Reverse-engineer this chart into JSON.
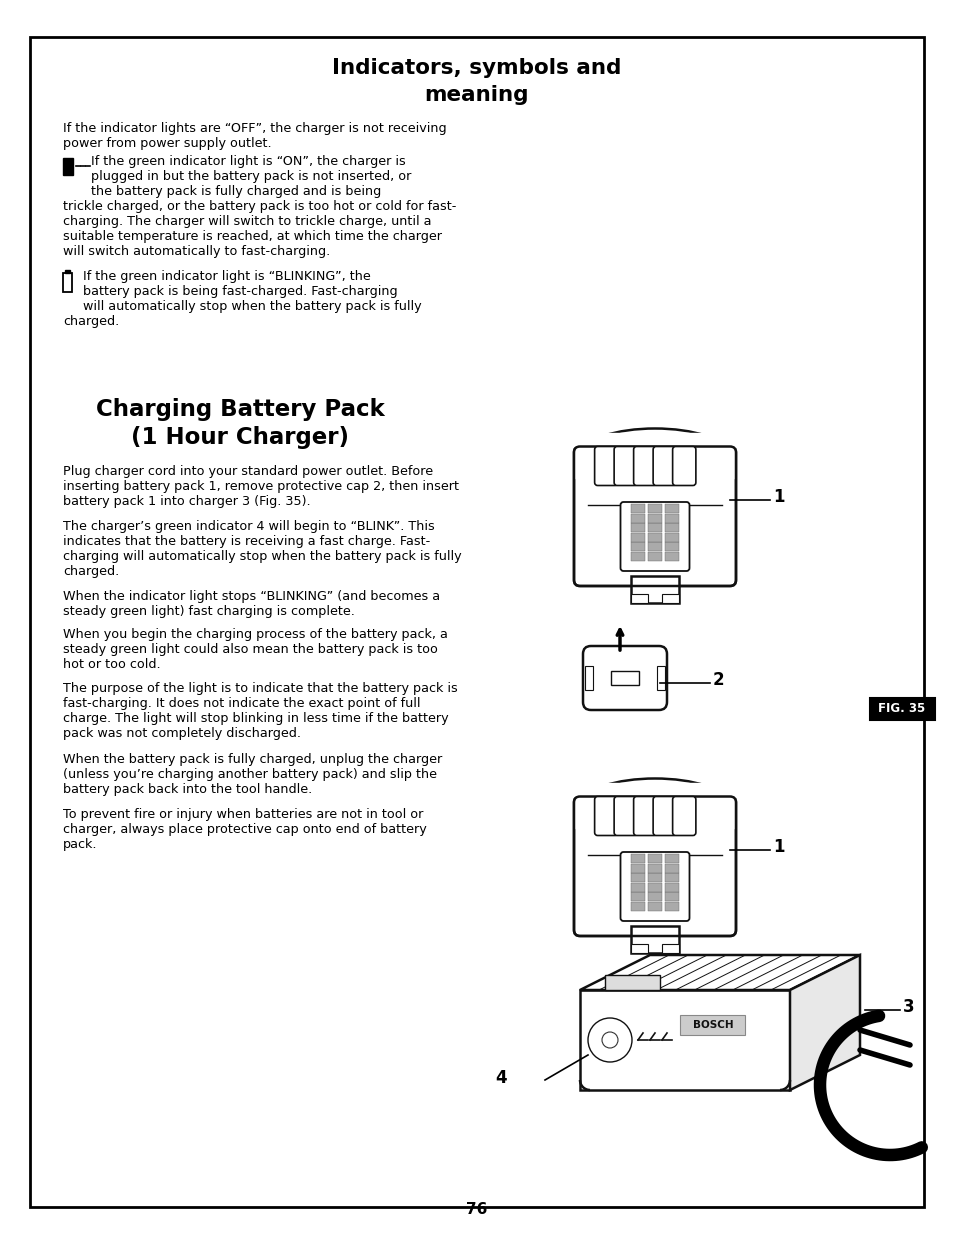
{
  "title1_line1": "Indicators, symbols and",
  "title1_line2": "meaning",
  "title2_line1": "Charging Battery Pack",
  "title2_line2": "(1 Hour Charger)",
  "page_number": "76",
  "fig_label": "FIG. 35",
  "bg_color": "#ffffff",
  "border_color": "#000000",
  "text_color": "#000000",
  "para0_line1": "If the indicator lights are “OFF”, the charger is not receiving",
  "para0_line2": "power from power supply outlet.",
  "para1_indent": "If the green indicator light is “ON”, the charger is",
  "para1_2": "plugged in but the battery pack is not inserted, or",
  "para1_3": "the battery pack is fully charged and is being",
  "para1_4": "trickle charged, or the battery pack is too hot or cold for fast-",
  "para1_5": "charging. The charger will switch to trickle charge, until a",
  "para1_6": "suitable temperature is reached, at which time the charger",
  "para1_7": "will switch automatically to fast-charging.",
  "para2_indent": "If the green indicator light is “BLINKING”, the",
  "para2_2": "battery pack is being fast-charged. Fast-charging",
  "para2_3": "will automatically stop when the battery pack is fully",
  "para2_4": "charged.",
  "para3_1": "Plug charger cord into your standard power outlet. Before",
  "para3_2": "inserting battery pack 1, remove protective cap 2, then insert",
  "para3_3": "battery pack 1 into charger 3 (Fig. 35).",
  "para4_1": "The charger’s green indicator 4 will begin to “BLINK”. This",
  "para4_2": "indicates that the battery is receiving a fast charge. Fast-",
  "para4_3": "charging will automatically stop when the battery pack is fully",
  "para4_4": "charged.",
  "para5_1": "When the indicator light stops “BLINKING” (and becomes a",
  "para5_2": "steady green light) fast charging is complete.",
  "para6_1": "When you begin the charging process of the battery pack, a",
  "para6_2": "steady green light could also mean the battery pack is too",
  "para6_3": "hot or too cold.",
  "para7_1": "The purpose of the light is to indicate that the battery pack is",
  "para7_2": "fast-charging. It does not indicate the exact point of full",
  "para7_3": "charge. The light will stop blinking in less time if the battery",
  "para7_4": "pack was not completely discharged.",
  "para8_1": "When the battery pack is fully charged, unplug the charger",
  "para8_2": "(unless you’re charging another battery pack) and slip the",
  "para8_3": "battery pack back into the tool handle.",
  "para9_1": "To prevent fire or injury when batteries are not in tool or",
  "para9_2": "charger, always place protective cap onto end of battery",
  "para9_3": "pack.",
  "lw": 1.8,
  "fs_body": 9.2,
  "fs_title": 15.5
}
